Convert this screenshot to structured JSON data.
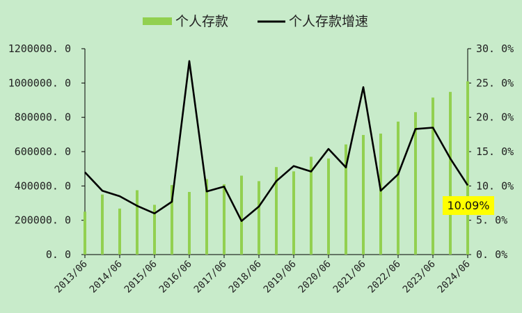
{
  "chart_data": {
    "type": "bar+line",
    "legend": {
      "placement": "top",
      "bar_label": "个人存款",
      "line_label": "个人存款增速"
    },
    "colors": {
      "background": "#c8ebca",
      "bar": "#92d050",
      "line": "#000000",
      "callout_bg": "#ffff00"
    },
    "y_left": {
      "range": [
        0,
        1200000
      ],
      "ticks": [
        "0. 0",
        "200000. 0",
        "400000. 0",
        "600000. 0",
        "800000. 0",
        "1000000. 0",
        "1200000. 0"
      ]
    },
    "y_right": {
      "range": [
        0,
        30
      ],
      "ticks": [
        "0. 0%",
        "5. 0%",
        "10. 0%",
        "15. 0%",
        "20. 0%",
        "25. 0%",
        "30. 0%"
      ]
    },
    "x_tick_labels": [
      "2013/06",
      "2014/06",
      "2015/06",
      "2016/06",
      "2017/06",
      "2018/06",
      "2019/06",
      "2020/06",
      "2021/06",
      "2022/06",
      "2023/06",
      "2024/06"
    ],
    "series": [
      {
        "name": "个人存款",
        "type": "bar",
        "axis": "left",
        "values": [
          250000,
          350000,
          268000,
          375000,
          290000,
          405000,
          365000,
          440000,
          410000,
          460000,
          428000,
          510000,
          485000,
          570000,
          560000,
          642000,
          697000,
          705000,
          775000,
          830000,
          915000,
          948000,
          1010000
        ]
      },
      {
        "name": "个人存款增速",
        "type": "line",
        "axis": "right",
        "values": [
          12.0,
          9.3,
          8.5,
          7.1,
          6.0,
          7.7,
          28.2,
          9.2,
          9.9,
          4.9,
          7.0,
          10.7,
          12.9,
          12.1,
          15.4,
          12.7,
          24.4,
          9.3,
          11.7,
          18.3,
          18.5,
          14.0,
          10.09
        ]
      }
    ],
    "annotation": {
      "text": "10.09%"
    }
  }
}
